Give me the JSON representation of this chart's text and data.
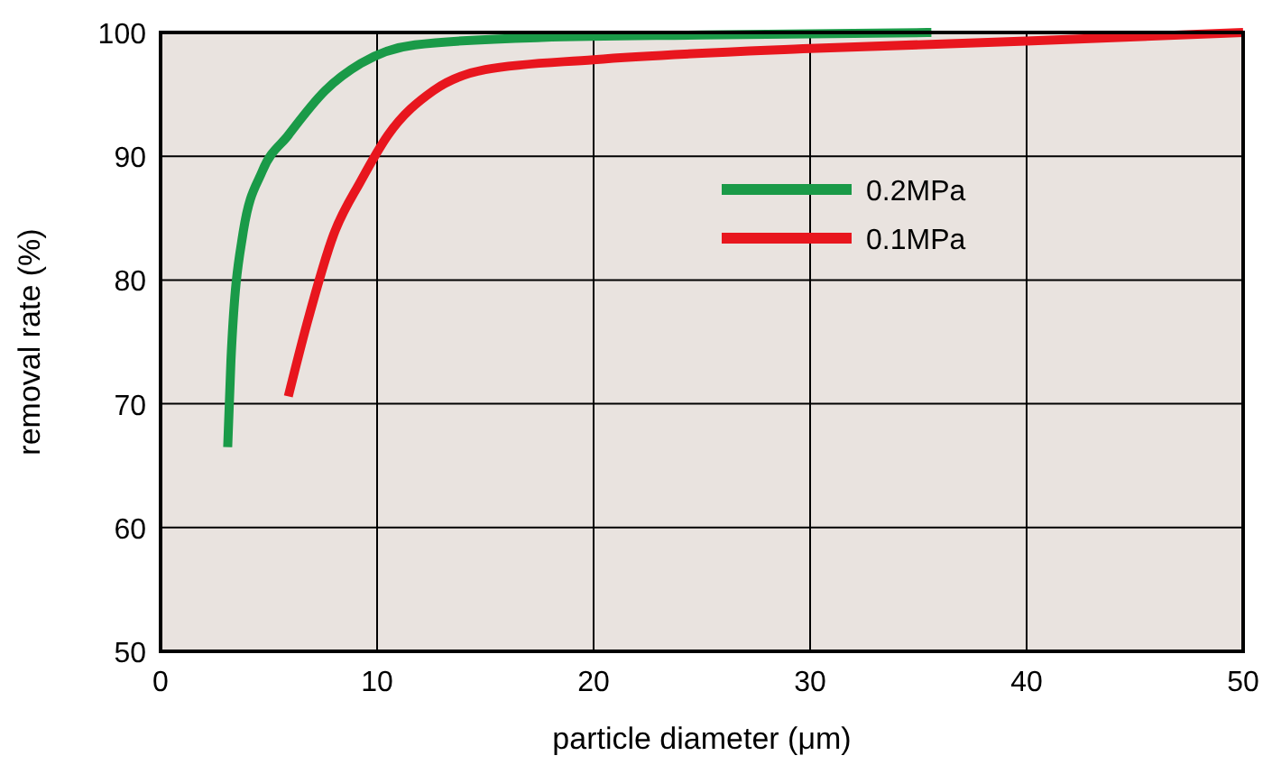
{
  "chart_data": {
    "type": "line",
    "xlabel": "particle diameter (μm)",
    "ylabel": "removal rate (%)",
    "xlim": [
      0,
      50
    ],
    "xticks": [
      0,
      10,
      20,
      30,
      40,
      50
    ],
    "ylim": [
      50,
      100
    ],
    "yticks": [
      50,
      60,
      70,
      80,
      90,
      100
    ],
    "grid": true,
    "legend": "top right",
    "line_style": "solid",
    "marker": "none",
    "series": [
      {
        "name": "0.2MPa",
        "color": "#1a9a48",
        "x": [
          3.1,
          3.25,
          3.8,
          4.7,
          5.9,
          7.6,
          9.25,
          11.75,
          17.6,
          25,
          35.6
        ],
        "values": [
          66.5,
          73.5,
          83.7,
          88.8,
          91.7,
          95.3,
          97.5,
          99,
          99.6,
          99.8,
          100
        ]
      },
      {
        "name": "0.1MPa",
        "color": "#e8161e",
        "x": [
          5.9,
          6.75,
          8,
          9.25,
          10.5,
          12.6,
          15,
          20,
          30,
          40,
          50
        ],
        "values": [
          70.6,
          76.4,
          83.7,
          88,
          91.7,
          95.3,
          97,
          97.8,
          98.7,
          99.3,
          100
        ]
      }
    ]
  }
}
